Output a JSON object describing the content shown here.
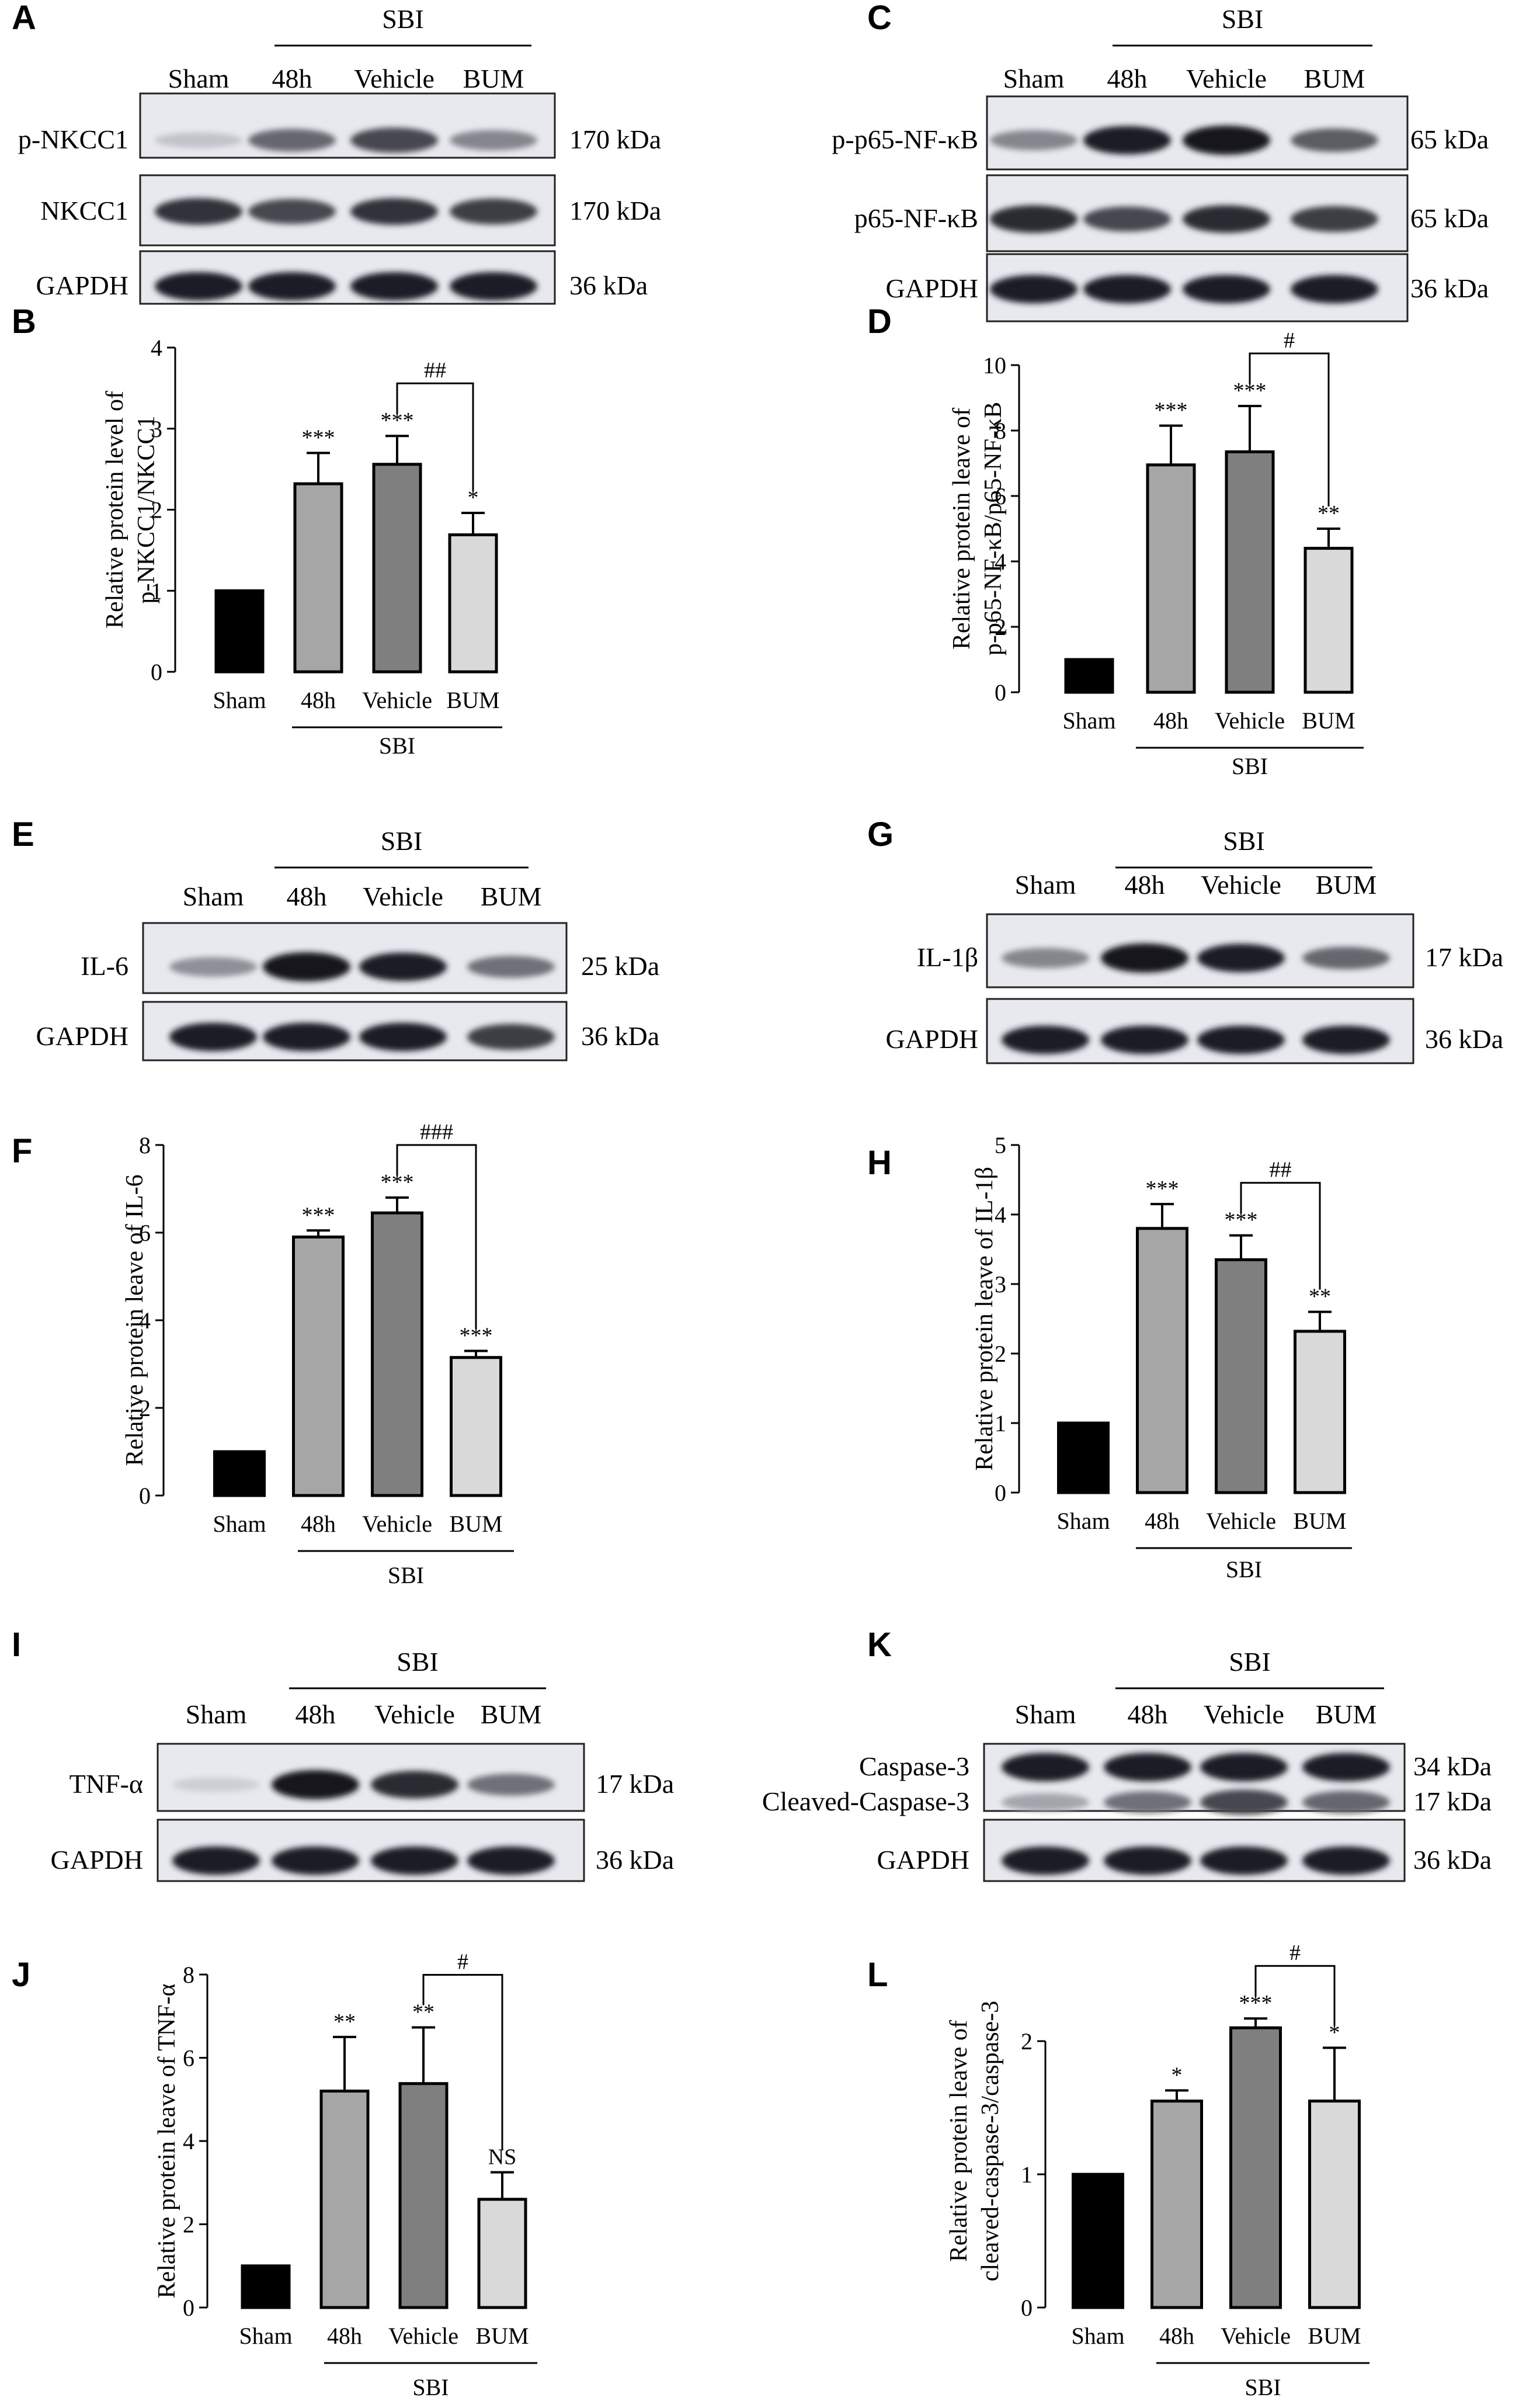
{
  "blots": [
    {
      "id": "A",
      "panel_label": "A",
      "group_label": "SBI",
      "lanes": [
        "Sham",
        "48h",
        "Vehicle",
        "BUM"
      ],
      "rows": [
        {
          "label": "p-NKCC1",
          "size": "170 kDa",
          "intensities": [
            0.15,
            0.6,
            0.75,
            0.45
          ]
        },
        {
          "label": "NKCC1",
          "size": "170 kDa",
          "intensities": [
            0.85,
            0.75,
            0.85,
            0.8
          ]
        },
        {
          "label": "GAPDH",
          "size": "36 kDa",
          "intensities": [
            0.95,
            0.95,
            0.95,
            0.95
          ]
        }
      ]
    },
    {
      "id": "C",
      "panel_label": "C",
      "group_label": "SBI",
      "lanes": [
        "Sham",
        "48h",
        "Vehicle",
        "BUM"
      ],
      "rows": [
        {
          "label": "p-p65-NF-κB",
          "size": "65 kDa",
          "intensities": [
            0.45,
            0.95,
            1.0,
            0.65
          ]
        },
        {
          "label": "p65-NF-κB",
          "size": "65 kDa",
          "intensities": [
            0.9,
            0.75,
            0.9,
            0.8
          ]
        },
        {
          "label": "GAPDH",
          "size": "36 kDa",
          "intensities": [
            0.95,
            0.95,
            0.95,
            0.95
          ]
        }
      ]
    },
    {
      "id": "E",
      "panel_label": "E",
      "group_label": "SBI",
      "lanes": [
        "Sham",
        "48h",
        "Vehicle",
        "BUM"
      ],
      "rows": [
        {
          "label": "IL-6",
          "size": "25 kDa",
          "intensities": [
            0.4,
            1.0,
            0.95,
            0.55
          ]
        },
        {
          "label": "GAPDH",
          "size": "36 kDa",
          "intensities": [
            0.95,
            0.95,
            0.95,
            0.8
          ]
        }
      ]
    },
    {
      "id": "G",
      "panel_label": "G",
      "group_label": "SBI",
      "lanes": [
        "Sham",
        "48h",
        "Vehicle",
        "BUM"
      ],
      "rows": [
        {
          "label": "IL-1β",
          "size": "17 kDa",
          "intensities": [
            0.45,
            1.0,
            0.95,
            0.6
          ]
        },
        {
          "label": "GAPDH",
          "size": "36 kDa",
          "intensities": [
            0.95,
            0.95,
            0.95,
            0.95
          ]
        }
      ]
    },
    {
      "id": "I",
      "panel_label": "I",
      "group_label": "SBI",
      "lanes": [
        "Sham",
        "48h",
        "Vehicle",
        "BUM"
      ],
      "rows": [
        {
          "label": "TNF-α",
          "size": "17 kDa",
          "intensities": [
            0.1,
            1.0,
            0.9,
            0.55
          ]
        },
        {
          "label": "GAPDH",
          "size": "36 kDa",
          "intensities": [
            0.95,
            0.95,
            0.95,
            0.95
          ]
        }
      ]
    },
    {
      "id": "K",
      "panel_label": "K",
      "group_label": "SBI",
      "lanes": [
        "Sham",
        "48h",
        "Vehicle",
        "BUM"
      ],
      "rows": [
        {
          "label": "Caspase-3",
          "size": "34 kDa",
          "intensities": [
            0.95,
            0.95,
            0.95,
            0.95
          ]
        },
        {
          "label": "Cleaved-Caspase-3",
          "size": "17 kDa",
          "intensities": [
            0.3,
            0.55,
            0.75,
            0.6
          ]
        },
        {
          "label": "GAPDH",
          "size": "36 kDa",
          "intensities": [
            0.95,
            0.95,
            0.95,
            0.95
          ]
        }
      ]
    }
  ],
  "chart_data": [
    {
      "id": "B",
      "panel_label": "B",
      "type": "bar",
      "categories": [
        "Sham",
        "48h",
        "Vehicle",
        "BUM"
      ],
      "group_label": "SBI",
      "values": [
        1.0,
        2.32,
        2.56,
        1.69
      ],
      "errors": [
        0,
        0.38,
        0.35,
        0.27
      ],
      "sig": [
        "",
        "***",
        "***",
        "*"
      ],
      "bracket": {
        "from": 2,
        "to": 3,
        "label": "##"
      },
      "ylabel": [
        "Relative protein level of",
        "p-NKCC1/NKCC1"
      ],
      "ylim": [
        0,
        4
      ],
      "yticks": [
        0,
        1,
        2,
        3,
        4
      ],
      "colors": [
        "#000000",
        "#a6a6a6",
        "#7f7f7f",
        "#d9d9d9"
      ]
    },
    {
      "id": "D",
      "panel_label": "D",
      "type": "bar",
      "categories": [
        "Sham",
        "48h",
        "Vehicle",
        "BUM"
      ],
      "group_label": "SBI",
      "values": [
        1.0,
        6.95,
        7.35,
        4.4
      ],
      "errors": [
        0,
        1.2,
        1.4,
        0.6
      ],
      "sig": [
        "",
        "***",
        "***",
        "**"
      ],
      "bracket": {
        "from": 2,
        "to": 3,
        "label": "#"
      },
      "ylabel": [
        "Relative protein leave of",
        "p-p65-NF-κB/p65-NF-κB"
      ],
      "ylim": [
        0,
        10
      ],
      "yticks": [
        0,
        2,
        4,
        6,
        8,
        10
      ],
      "colors": [
        "#000000",
        "#a6a6a6",
        "#7f7f7f",
        "#d9d9d9"
      ]
    },
    {
      "id": "F",
      "panel_label": "F",
      "type": "bar",
      "categories": [
        "Sham",
        "48h",
        "Vehicle",
        "BUM"
      ],
      "group_label": "SBI",
      "values": [
        1.0,
        5.9,
        6.45,
        3.15
      ],
      "errors": [
        0,
        0.15,
        0.35,
        0.15
      ],
      "sig": [
        "",
        "***",
        "***",
        "***"
      ],
      "bracket": {
        "from": 2,
        "to": 3,
        "label": "###"
      },
      "ylabel": [
        "Relative protein leave of IL-6"
      ],
      "ylim": [
        0,
        8
      ],
      "yticks": [
        0,
        2,
        4,
        6,
        8
      ],
      "colors": [
        "#000000",
        "#a6a6a6",
        "#7f7f7f",
        "#d9d9d9"
      ]
    },
    {
      "id": "H",
      "panel_label": "H",
      "type": "bar",
      "categories": [
        "Sham",
        "48h",
        "Vehicle",
        "BUM"
      ],
      "group_label": "SBI",
      "values": [
        1.0,
        3.8,
        3.35,
        2.32
      ],
      "errors": [
        0,
        0.35,
        0.35,
        0.28
      ],
      "sig": [
        "",
        "***",
        "***",
        "**"
      ],
      "bracket": {
        "from": 2,
        "to": 3,
        "label": "##"
      },
      "ylabel": [
        "Relative protein leave of IL-1β"
      ],
      "ylim": [
        0,
        5
      ],
      "yticks": [
        0,
        1,
        2,
        3,
        4,
        5
      ],
      "colors": [
        "#000000",
        "#a6a6a6",
        "#7f7f7f",
        "#d9d9d9"
      ]
    },
    {
      "id": "J",
      "panel_label": "J",
      "type": "bar",
      "categories": [
        "Sham",
        "48h",
        "Vehicle",
        "BUM"
      ],
      "group_label": "SBI",
      "values": [
        1.0,
        5.2,
        5.38,
        2.6
      ],
      "errors": [
        0,
        1.3,
        1.35,
        0.65
      ],
      "sig": [
        "",
        "**",
        "**",
        "NS"
      ],
      "bracket": {
        "from": 2,
        "to": 3,
        "label": "#"
      },
      "ylabel": [
        "Relative protein leave of TNF-α"
      ],
      "ylim": [
        0,
        8
      ],
      "yticks": [
        0,
        2,
        4,
        6,
        8
      ],
      "colors": [
        "#000000",
        "#a6a6a6",
        "#7f7f7f",
        "#d9d9d9"
      ]
    },
    {
      "id": "L",
      "panel_label": "L",
      "type": "bar",
      "categories": [
        "Sham",
        "48h",
        "Vehicle",
        "BUM"
      ],
      "group_label": "SBI",
      "values": [
        1.0,
        1.55,
        2.1,
        1.55
      ],
      "errors": [
        0,
        0.08,
        0.07,
        0.4
      ],
      "sig": [
        "",
        "*",
        "***",
        "*"
      ],
      "bracket": {
        "from": 2,
        "to": 3,
        "label": "#"
      },
      "ylabel": [
        "Relative protein leave of",
        "cleaved-caspase-3/caspase-3"
      ],
      "ylim": [
        0,
        2.5
      ],
      "yticks": [
        0,
        1,
        2
      ],
      "colors": [
        "#000000",
        "#a6a6a6",
        "#7f7f7f",
        "#d9d9d9"
      ]
    }
  ]
}
